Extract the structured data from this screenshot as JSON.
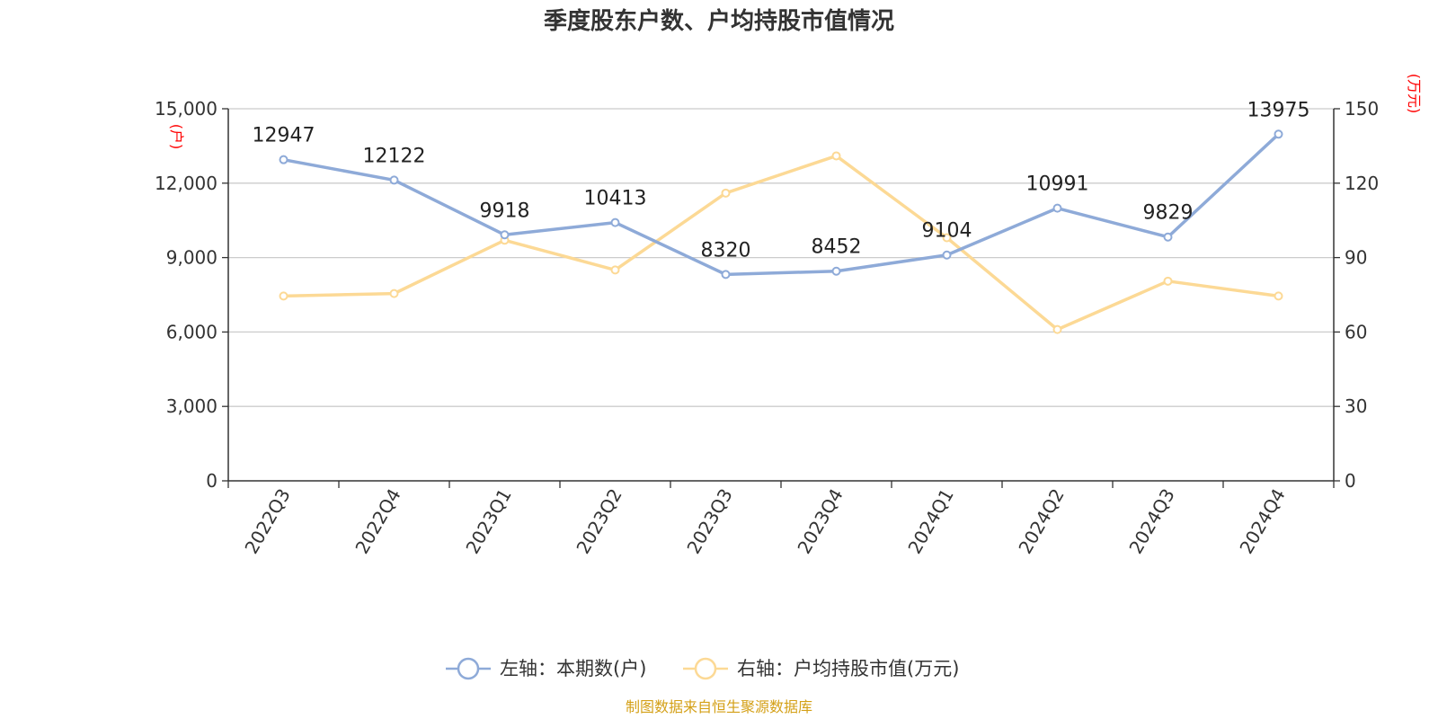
{
  "chart_data": {
    "type": "line",
    "title": "季度股东户数、户均持股市值情况",
    "categories": [
      "2022Q3",
      "2022Q4",
      "2023Q1",
      "2023Q2",
      "2023Q3",
      "2023Q4",
      "2024Q1",
      "2024Q2",
      "2024Q3",
      "2024Q4"
    ],
    "left_axis": {
      "unit": "(户)",
      "range": [
        0,
        15000
      ],
      "ticks": [
        0,
        3000,
        6000,
        9000,
        12000,
        15000
      ],
      "tick_labels": [
        "0",
        "3,000",
        "6,000",
        "9,000",
        "12,000",
        "15,000"
      ]
    },
    "right_axis": {
      "unit": "(万元)",
      "range": [
        0,
        150
      ],
      "ticks": [
        0,
        30,
        60,
        90,
        120,
        150
      ],
      "tick_labels": [
        "0",
        "30",
        "60",
        "90",
        "120",
        "150"
      ]
    },
    "series": [
      {
        "name": "左轴：本期数(户)",
        "axis": "left",
        "color": "#8eaad8",
        "values": [
          12947,
          12122,
          9918,
          10413,
          8320,
          8452,
          9104,
          10991,
          9829,
          13975
        ],
        "labels": [
          "12947",
          "12122",
          "9918",
          "10413",
          "8320",
          "8452",
          "9104",
          "10991",
          "9829",
          "13975"
        ]
      },
      {
        "name": "右轴：户均持股市值(万元)",
        "axis": "right",
        "color": "#fcd995",
        "values": [
          74.5,
          75.5,
          97,
          85,
          116,
          131,
          98,
          61,
          80.5,
          74.5
        ]
      }
    ],
    "grid": true,
    "legend_position": "bottom-center"
  },
  "source": "制图数据来自恒生聚源数据库"
}
